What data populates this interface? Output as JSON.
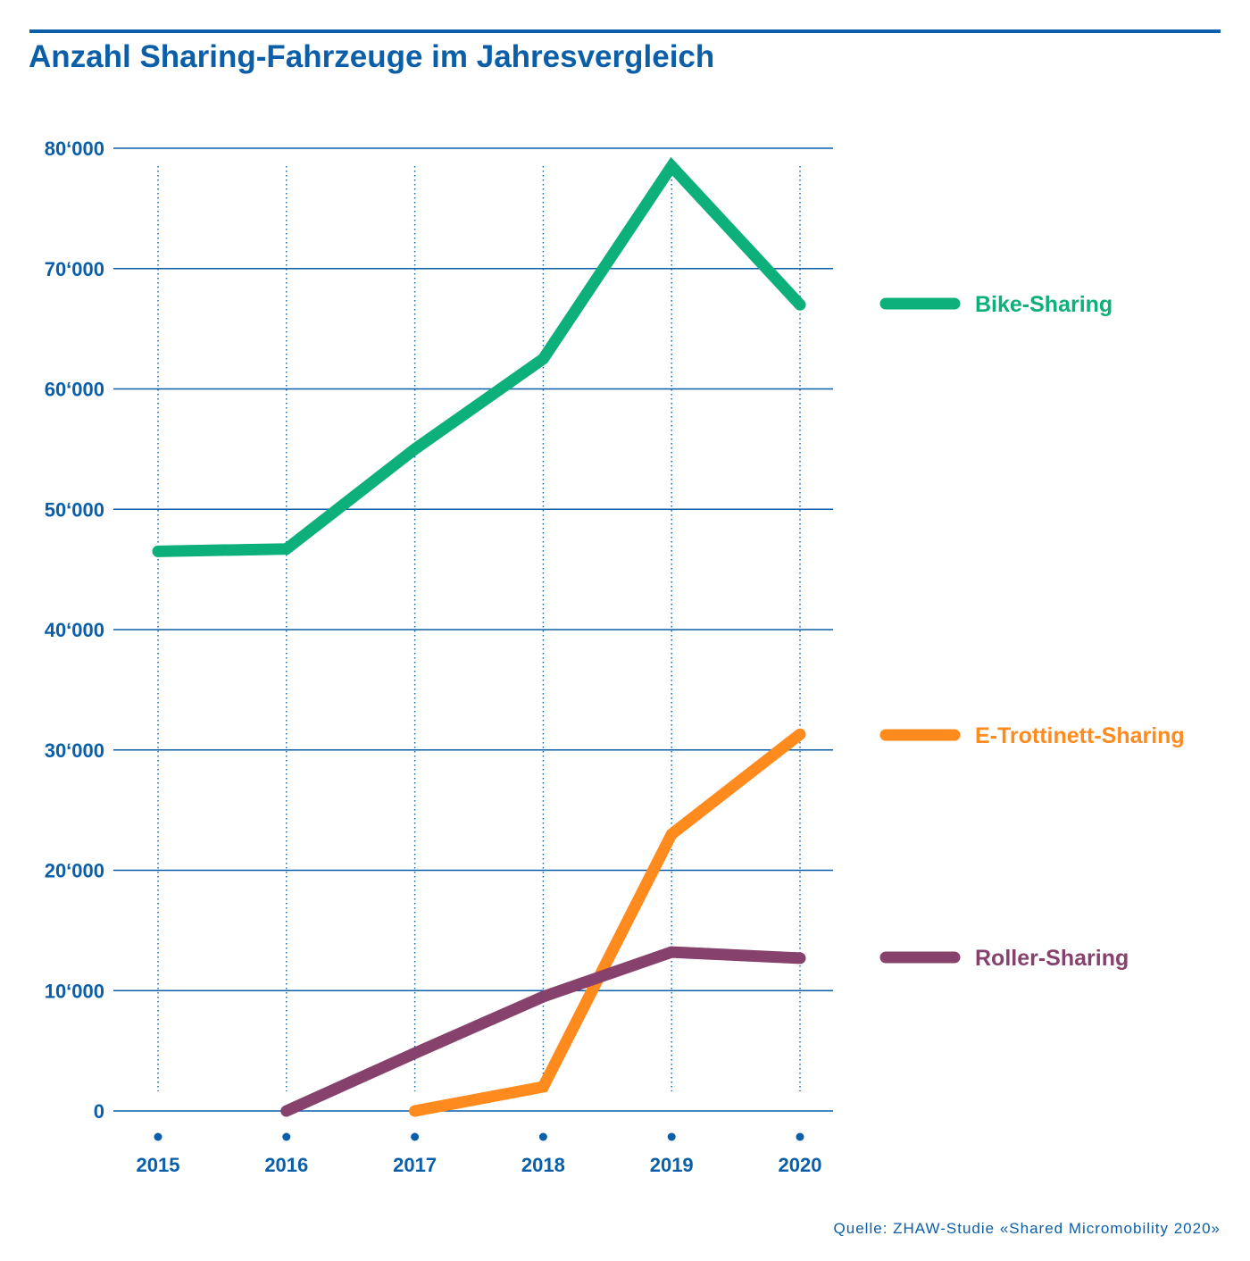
{
  "title": "Anzahl Sharing-Fahrzeuge im Jahresvergleich",
  "source": "Quelle: ZHAW-Studie «Shared Micromobility 2020»",
  "colors": {
    "axis": "#0b5ea8",
    "bike": "#0db07a",
    "trottinett": "#ff8a1d",
    "roller": "#86416d"
  },
  "chart_data": {
    "type": "line",
    "title": "Anzahl Sharing-Fahrzeuge im Jahresvergleich",
    "x": [
      "2015",
      "2016",
      "2017",
      "2018",
      "2019",
      "2020"
    ],
    "ylim": [
      0,
      80000
    ],
    "yticks": [
      0,
      10000,
      20000,
      30000,
      40000,
      50000,
      60000,
      70000,
      80000
    ],
    "ytick_labels": [
      "0",
      "10‘000",
      "20‘000",
      "30‘000",
      "40‘000",
      "50‘000",
      "60‘000",
      "70‘000",
      "80‘000"
    ],
    "grid": "horizontal solid, vertical dotted",
    "legend_position": "right",
    "series": [
      {
        "name": "Bike-Sharing",
        "color": "#0db07a",
        "values": [
          46500,
          46700,
          55000,
          62500,
          78500,
          67000
        ]
      },
      {
        "name": "E-Trottinett-Sharing",
        "color": "#ff8a1d",
        "values": [
          null,
          null,
          0,
          2000,
          23000,
          31300
        ]
      },
      {
        "name": "Roller-Sharing",
        "color": "#86416d",
        "values": [
          null,
          0,
          4800,
          9500,
          13200,
          12700
        ]
      }
    ]
  }
}
